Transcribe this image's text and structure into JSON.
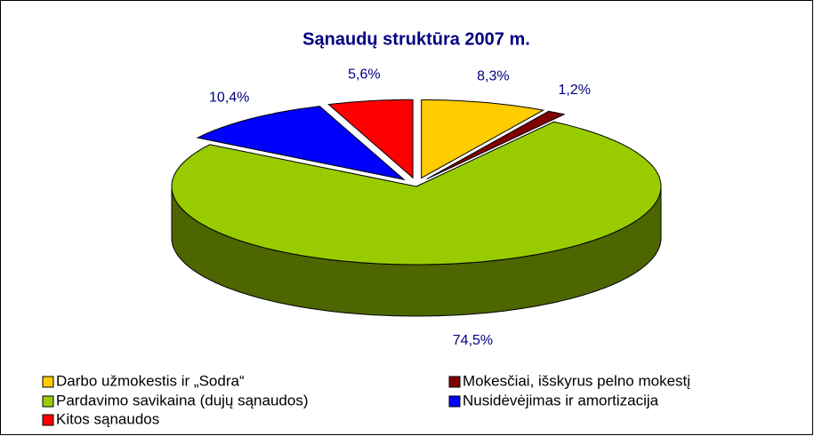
{
  "chart_data": {
    "type": "pie",
    "title": "Sąnaudų struktūra 2007 m.",
    "categories": [
      "Darbo užmokestis ir „Sodra“",
      "Mokesčiai, išskyrus pelno mokestį",
      "Pardavimo savikaina (dujų sąnaudos)",
      "Nusidėvėjimas ir amortizacija",
      "Kitos sąnaudos"
    ],
    "values": [
      8.3,
      1.2,
      74.5,
      10.4,
      5.6
    ],
    "value_labels": [
      "8,3%",
      "1,2%",
      "74,5%",
      "10,4%",
      "5,6%"
    ],
    "colors": [
      "#ffcc00",
      "#800000",
      "#99cc00",
      "#0000ff",
      "#ff0000"
    ]
  }
}
